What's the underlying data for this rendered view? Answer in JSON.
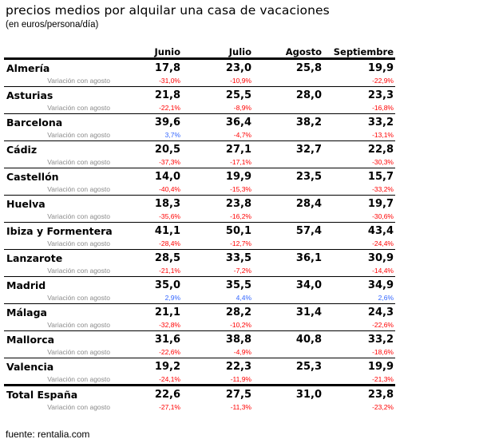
{
  "title": "precios medios por alquilar una casa de vacaciones",
  "subtitle": "(en euros/persona/día)",
  "columns": [
    "Junio",
    "Julio",
    "Agosto",
    "Septiembre"
  ],
  "variation_label": "Variación con agosto",
  "colors": {
    "negative": "#ff0000",
    "positive": "#3366ff",
    "label_gray": "#8a8a8a"
  },
  "rows": [
    {
      "name": "Almería",
      "values": [
        "17,8",
        "23,0",
        "25,8",
        "19,9"
      ],
      "variation": [
        "-31,0%",
        "-10,9%",
        "",
        "-22,9%"
      ]
    },
    {
      "name": "Asturias",
      "values": [
        "21,8",
        "25,5",
        "28,0",
        "23,3"
      ],
      "variation": [
        "-22,1%",
        "-8,9%",
        "",
        "-16,8%"
      ]
    },
    {
      "name": "Barcelona",
      "values": [
        "39,6",
        "36,4",
        "38,2",
        "33,2"
      ],
      "variation": [
        "3,7%",
        "-4,7%",
        "",
        "-13,1%"
      ]
    },
    {
      "name": "Cádiz",
      "values": [
        "20,5",
        "27,1",
        "32,7",
        "22,8"
      ],
      "variation": [
        "-37,3%",
        "-17,1%",
        "",
        "-30,3%"
      ]
    },
    {
      "name": "Castellón",
      "values": [
        "14,0",
        "19,9",
        "23,5",
        "15,7"
      ],
      "variation": [
        "-40,4%",
        "-15,3%",
        "",
        "-33,2%"
      ]
    },
    {
      "name": "Huelva",
      "values": [
        "18,3",
        "23,8",
        "28,4",
        "19,7"
      ],
      "variation": [
        "-35,6%",
        "-16,2%",
        "",
        "-30,6%"
      ]
    },
    {
      "name": "Ibiza y Formentera",
      "values": [
        "41,1",
        "50,1",
        "57,4",
        "43,4"
      ],
      "variation": [
        "-28,4%",
        "-12,7%",
        "",
        "-24,4%"
      ]
    },
    {
      "name": "Lanzarote",
      "values": [
        "28,5",
        "33,5",
        "36,1",
        "30,9"
      ],
      "variation": [
        "-21,1%",
        "-7,2%",
        "",
        "-14,4%"
      ]
    },
    {
      "name": "Madrid",
      "values": [
        "35,0",
        "35,5",
        "34,0",
        "34,9"
      ],
      "variation": [
        "2,9%",
        "4,4%",
        "",
        "2,6%"
      ]
    },
    {
      "name": "Málaga",
      "values": [
        "21,1",
        "28,2",
        "31,4",
        "24,3"
      ],
      "variation": [
        "-32,8%",
        "-10,2%",
        "",
        "-22,6%"
      ]
    },
    {
      "name": "Mallorca",
      "values": [
        "31,6",
        "38,8",
        "40,8",
        "33,2"
      ],
      "variation": [
        "-22,6%",
        "-4,9%",
        "",
        "-18,6%"
      ]
    },
    {
      "name": "Valencia",
      "values": [
        "19,2",
        "22,3",
        "25,3",
        "19,9"
      ],
      "variation": [
        "-24,1%",
        "-11,9%",
        "",
        "-21,3%"
      ]
    },
    {
      "name": "Total España",
      "values": [
        "22,6",
        "27,5",
        "31,0",
        "23,8"
      ],
      "variation": [
        "-27,1%",
        "-11,3%",
        "",
        "-23,2%"
      ]
    }
  ],
  "source": "fuente: rentalia.com"
}
